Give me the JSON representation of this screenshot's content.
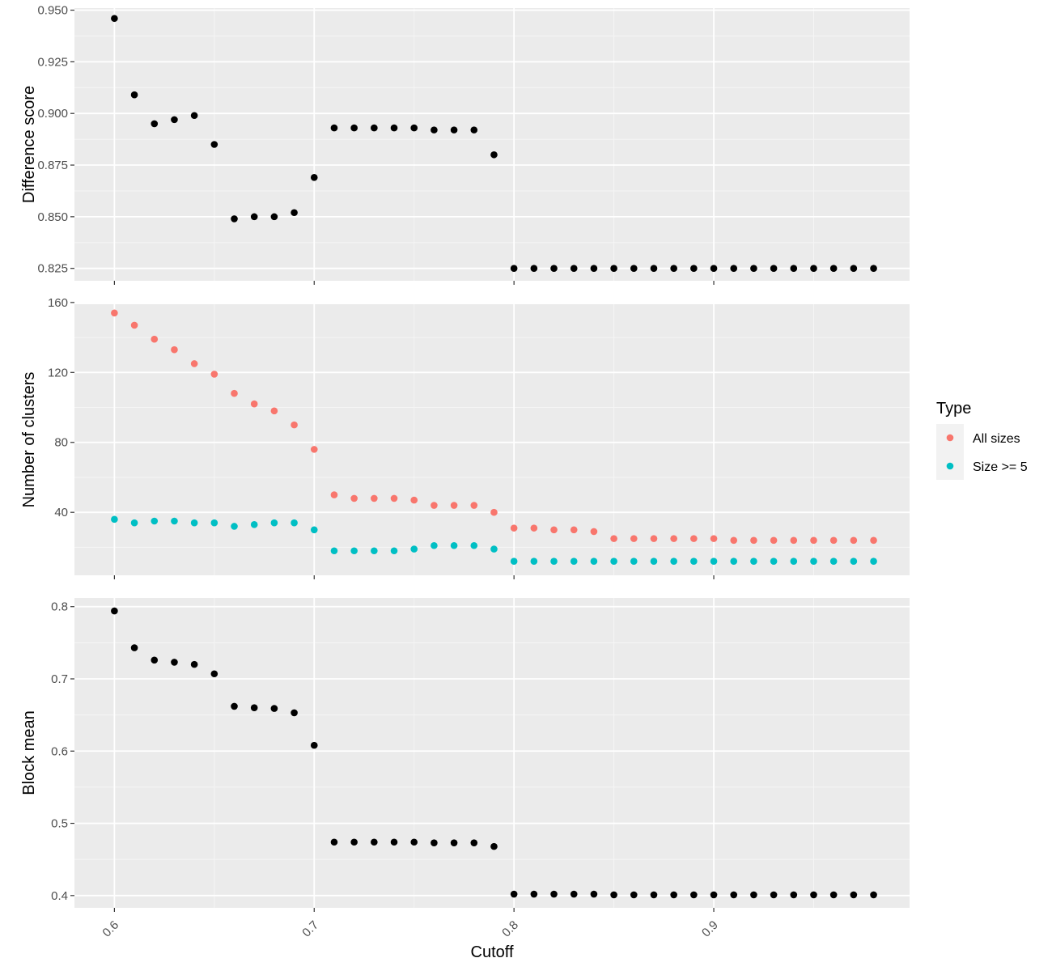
{
  "chart_data": [
    {
      "type": "scatter",
      "panel": "top",
      "ylabel": "Difference score",
      "xlim": [
        0.58,
        0.998
      ],
      "ylim": [
        0.819,
        0.951
      ],
      "yticks": [
        "0.825",
        "0.850",
        "0.875",
        "0.900",
        "0.925",
        "0.950"
      ],
      "grid": true,
      "series": [
        {
          "color": "#000000",
          "x": [
            0.6,
            0.61,
            0.62,
            0.63,
            0.64,
            0.65,
            0.66,
            0.67,
            0.68,
            0.69,
            0.7,
            0.71,
            0.72,
            0.73,
            0.74,
            0.75,
            0.76,
            0.77,
            0.78,
            0.79,
            0.8,
            0.81,
            0.82,
            0.83,
            0.84,
            0.85,
            0.86,
            0.87,
            0.88,
            0.89,
            0.9,
            0.91,
            0.92,
            0.93,
            0.94,
            0.95,
            0.96,
            0.97,
            0.98
          ],
          "y": [
            0.946,
            0.909,
            0.895,
            0.897,
            0.899,
            0.885,
            0.849,
            0.85,
            0.85,
            0.852,
            0.869,
            0.893,
            0.893,
            0.893,
            0.893,
            0.893,
            0.892,
            0.892,
            0.892,
            0.88,
            0.825,
            0.825,
            0.825,
            0.825,
            0.825,
            0.825,
            0.825,
            0.825,
            0.825,
            0.825,
            0.825,
            0.825,
            0.825,
            0.825,
            0.825,
            0.825,
            0.825,
            0.825,
            0.825
          ]
        }
      ]
    },
    {
      "type": "scatter",
      "panel": "middle",
      "ylabel": "Number of clusters",
      "xlim": [
        0.58,
        0.998
      ],
      "ylim": [
        4,
        159
      ],
      "yticks": [
        "40",
        "80",
        "120",
        "160"
      ],
      "grid": true,
      "legend": {
        "title": "Type",
        "position": "right"
      },
      "series": [
        {
          "name": "All sizes",
          "color": "#F8766D",
          "x": [
            0.6,
            0.61,
            0.62,
            0.63,
            0.64,
            0.65,
            0.66,
            0.67,
            0.68,
            0.69,
            0.7,
            0.71,
            0.72,
            0.73,
            0.74,
            0.75,
            0.76,
            0.77,
            0.78,
            0.79,
            0.8,
            0.81,
            0.82,
            0.83,
            0.84,
            0.85,
            0.86,
            0.87,
            0.88,
            0.89,
            0.9,
            0.91,
            0.92,
            0.93,
            0.94,
            0.95,
            0.96,
            0.97,
            0.98
          ],
          "y": [
            154,
            147,
            139,
            133,
            125,
            119,
            108,
            102,
            98,
            90,
            76,
            50,
            48,
            48,
            48,
            47,
            44,
            44,
            44,
            40,
            31,
            31,
            30,
            30,
            29,
            25,
            25,
            25,
            25,
            25,
            25,
            24,
            24,
            24,
            24,
            24,
            24,
            24,
            24
          ]
        },
        {
          "name": "Size >= 5",
          "color": "#00BFC4",
          "x": [
            0.6,
            0.61,
            0.62,
            0.63,
            0.64,
            0.65,
            0.66,
            0.67,
            0.68,
            0.69,
            0.7,
            0.71,
            0.72,
            0.73,
            0.74,
            0.75,
            0.76,
            0.77,
            0.78,
            0.79,
            0.8,
            0.81,
            0.82,
            0.83,
            0.84,
            0.85,
            0.86,
            0.87,
            0.88,
            0.89,
            0.9,
            0.91,
            0.92,
            0.93,
            0.94,
            0.95,
            0.96,
            0.97,
            0.98
          ],
          "y": [
            36,
            34,
            35,
            35,
            34,
            34,
            32,
            33,
            34,
            34,
            30,
            18,
            18,
            18,
            18,
            19,
            21,
            21,
            21,
            19,
            12,
            12,
            12,
            12,
            12,
            12,
            12,
            12,
            12,
            12,
            12,
            12,
            12,
            12,
            12,
            12,
            12,
            12,
            12
          ]
        }
      ]
    },
    {
      "type": "scatter",
      "panel": "bottom",
      "ylabel": "Block mean",
      "xlabel": "Cutoff",
      "xlim": [
        0.58,
        0.998
      ],
      "xticks": [
        "0.6",
        "0.7",
        "0.8",
        "0.9"
      ],
      "ylim": [
        0.383,
        0.812
      ],
      "yticks": [
        "0.4",
        "0.5",
        "0.6",
        "0.7",
        "0.8"
      ],
      "grid": true,
      "series": [
        {
          "color": "#000000",
          "x": [
            0.6,
            0.61,
            0.62,
            0.63,
            0.64,
            0.65,
            0.66,
            0.67,
            0.68,
            0.69,
            0.7,
            0.71,
            0.72,
            0.73,
            0.74,
            0.75,
            0.76,
            0.77,
            0.78,
            0.79,
            0.8,
            0.81,
            0.82,
            0.83,
            0.84,
            0.85,
            0.86,
            0.87,
            0.88,
            0.89,
            0.9,
            0.91,
            0.92,
            0.93,
            0.94,
            0.95,
            0.96,
            0.97,
            0.98
          ],
          "y": [
            0.794,
            0.743,
            0.726,
            0.723,
            0.72,
            0.707,
            0.662,
            0.66,
            0.659,
            0.653,
            0.608,
            0.474,
            0.474,
            0.474,
            0.474,
            0.474,
            0.473,
            0.473,
            0.473,
            0.468,
            0.402,
            0.402,
            0.402,
            0.402,
            0.402,
            0.401,
            0.401,
            0.401,
            0.401,
            0.401,
            0.401,
            0.401,
            0.401,
            0.401,
            0.401,
            0.401,
            0.401,
            0.401,
            0.401
          ]
        }
      ]
    }
  ]
}
